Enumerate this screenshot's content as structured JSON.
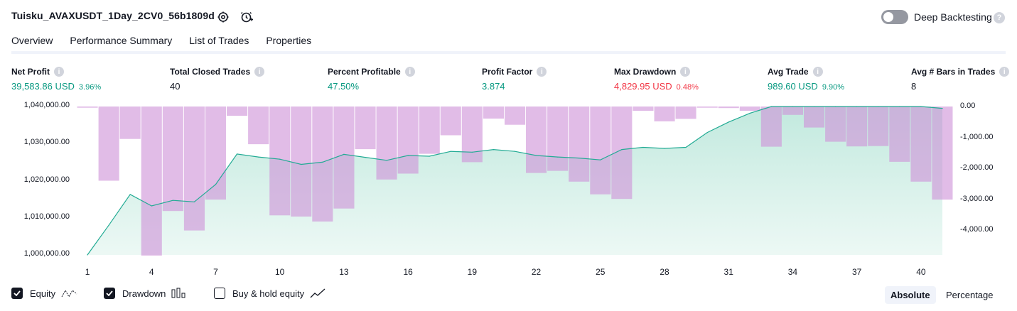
{
  "header": {
    "title": "Tuisku_AVAXUSDT_1Day_2CV0_56b1809d",
    "deep_backtesting_label": "Deep Backtesting",
    "help_glyph": "?",
    "icons": [
      "settings-icon",
      "add-alert-icon"
    ]
  },
  "tabs": [
    "Overview",
    "Performance Summary",
    "List of Trades",
    "Properties"
  ],
  "metrics": [
    {
      "label": "Net Profit",
      "value": "39,583.86 USD",
      "pct": "3.96%",
      "color": "green"
    },
    {
      "label": "Total Closed Trades",
      "value": "40",
      "pct": "",
      "color": "default"
    },
    {
      "label": "Percent Profitable",
      "value": "47.50%",
      "pct": "",
      "color": "green"
    },
    {
      "label": "Profit Factor",
      "value": "3.874",
      "pct": "",
      "color": "green"
    },
    {
      "label": "Max Drawdown",
      "value": "4,829.95 USD",
      "pct": "0.48%",
      "color": "red"
    },
    {
      "label": "Avg Trade",
      "value": "989.60 USD",
      "pct": "9.90%",
      "color": "green"
    },
    {
      "label": "Avg # Bars in Trades",
      "value": "8",
      "pct": "",
      "color": "default"
    }
  ],
  "info_glyph": "i",
  "chart_data": {
    "type": "area",
    "x_ticks": [
      "1",
      "4",
      "7",
      "10",
      "13",
      "16",
      "19",
      "22",
      "25",
      "28",
      "31",
      "34",
      "37",
      "40"
    ],
    "left_axis": {
      "ticks": [
        "1,040,000.00",
        "1,030,000.00",
        "1,020,000.00",
        "1,010,000.00",
        "1,000,000.00"
      ],
      "ylim": [
        1000000,
        1040000
      ]
    },
    "right_axis": {
      "ticks": [
        "0.00",
        "-1,000.00",
        "-2,000.00",
        "-3,000.00",
        "-4,000.00"
      ],
      "ylim": [
        -4800,
        0
      ]
    },
    "series": [
      {
        "name": "Equity",
        "type": "area",
        "color": "#22ab94",
        "x": [
          1,
          2,
          3,
          4,
          5,
          6,
          7,
          8,
          9,
          10,
          11,
          12,
          13,
          14,
          15,
          16,
          17,
          18,
          19,
          20,
          21,
          22,
          23,
          24,
          25,
          26,
          27,
          28,
          29,
          30,
          31,
          32,
          33,
          34,
          35,
          36,
          37,
          38,
          39,
          40,
          41
        ],
        "values": [
          1000000,
          1008000,
          1016300,
          1013200,
          1014700,
          1014300,
          1019000,
          1027200,
          1026400,
          1025800,
          1024400,
          1025000,
          1027100,
          1026300,
          1025500,
          1026800,
          1026600,
          1027900,
          1027700,
          1028400,
          1027900,
          1026800,
          1026400,
          1026100,
          1025600,
          1028400,
          1029000,
          1028700,
          1029000,
          1033000,
          1035800,
          1038200,
          1040400,
          1042100,
          1041900,
          1041600,
          1041200,
          1041100,
          1040900,
          1040200,
          1039500
        ]
      },
      {
        "name": "Drawdown",
        "type": "bar",
        "color": "#ce93d8",
        "x": [
          1,
          2,
          3,
          4,
          5,
          6,
          7,
          8,
          9,
          10,
          11,
          12,
          13,
          14,
          15,
          16,
          17,
          18,
          19,
          20,
          21,
          22,
          23,
          24,
          25,
          26,
          27,
          28,
          29,
          30,
          31,
          32,
          33,
          34,
          35,
          36,
          37,
          38,
          39,
          40,
          41
        ],
        "values": [
          -40,
          -2400,
          -1050,
          -4820,
          -3380,
          -4010,
          -3010,
          -300,
          -1220,
          -3520,
          -3560,
          -3720,
          -3300,
          -1380,
          -2360,
          -2170,
          -1530,
          -930,
          -1800,
          -390,
          -590,
          -2150,
          -2080,
          -2430,
          -2840,
          -2990,
          -140,
          -480,
          -400,
          -40,
          -50,
          -140,
          -1300,
          -270,
          -680,
          -1140,
          -1290,
          -1280,
          -1790,
          -2430,
          -3010
        ]
      }
    ]
  },
  "legend": {
    "equity": {
      "label": "Equity",
      "checked": true
    },
    "drawdown": {
      "label": "Drawdown",
      "checked": true
    },
    "buyhold": {
      "label": "Buy & hold equity",
      "checked": false
    }
  },
  "mode": {
    "absolute": "Absolute",
    "percentage": "Percentage",
    "selected": "Absolute"
  }
}
